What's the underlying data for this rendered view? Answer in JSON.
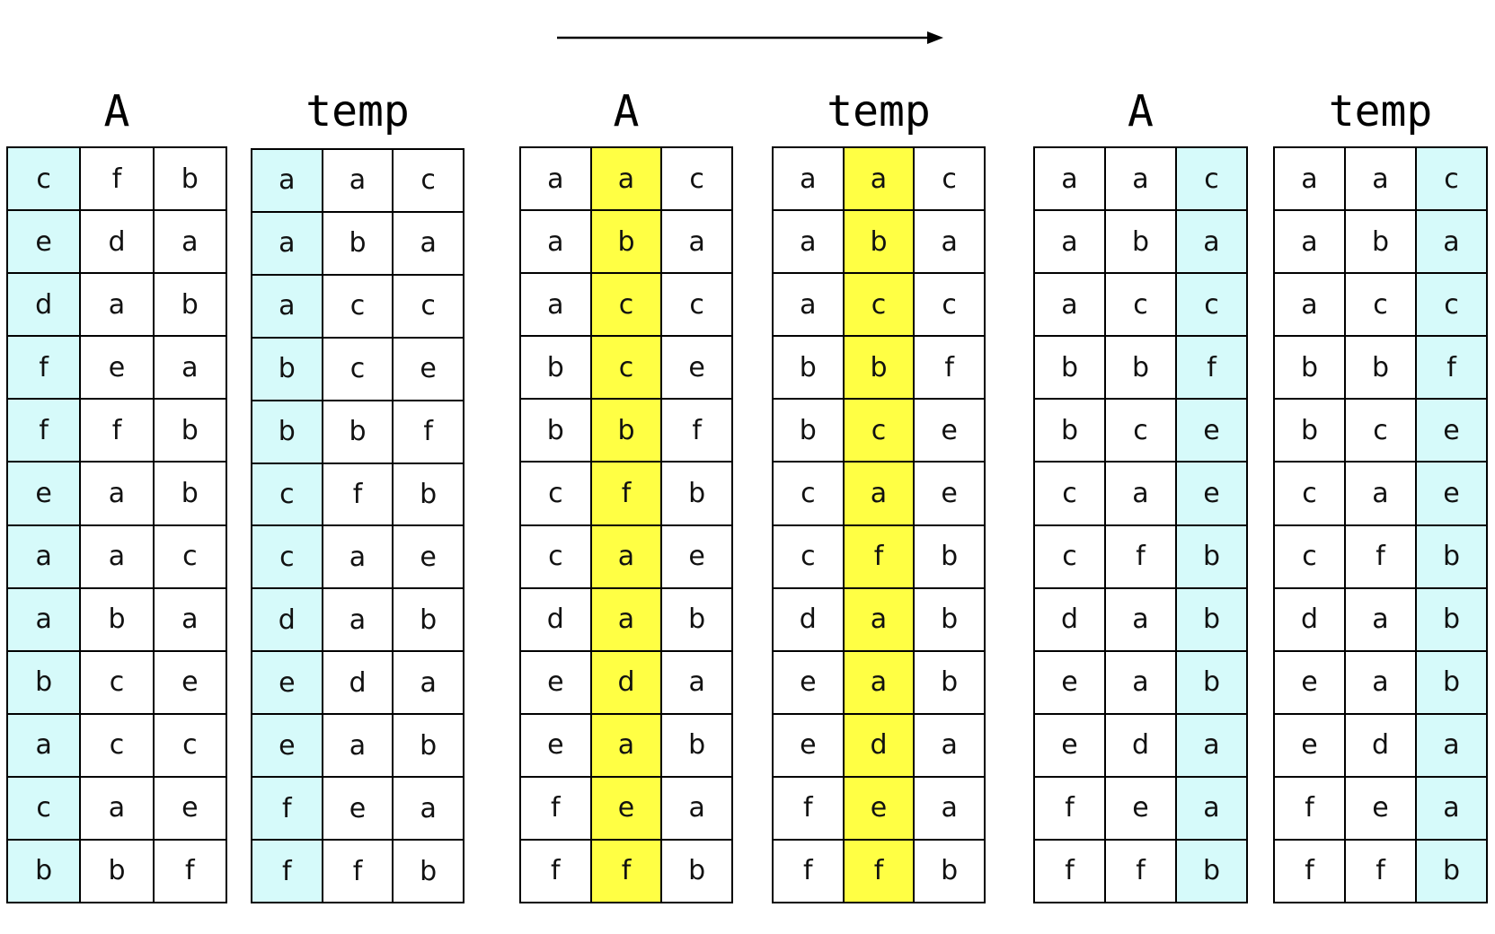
{
  "colors": {
    "cyan": "#d6fafa",
    "yellow": "#ffff44"
  },
  "panels": [
    {
      "title": "A",
      "highlight_col": 0,
      "highlight": "cyan",
      "rows": [
        [
          "c",
          "f",
          "b"
        ],
        [
          "e",
          "d",
          "a"
        ],
        [
          "d",
          "a",
          "b"
        ],
        [
          "f",
          "e",
          "a"
        ],
        [
          "f",
          "f",
          "b"
        ],
        [
          "e",
          "a",
          "b"
        ],
        [
          "a",
          "a",
          "c"
        ],
        [
          "a",
          "b",
          "a"
        ],
        [
          "b",
          "c",
          "e"
        ],
        [
          "a",
          "c",
          "c"
        ],
        [
          "c",
          "a",
          "e"
        ],
        [
          "b",
          "b",
          "f"
        ]
      ]
    },
    {
      "title": "temp",
      "highlight_col": 0,
      "highlight": "cyan",
      "rows": [
        [
          "a",
          "a",
          "c"
        ],
        [
          "a",
          "b",
          "a"
        ],
        [
          "a",
          "c",
          "c"
        ],
        [
          "b",
          "c",
          "e"
        ],
        [
          "b",
          "b",
          "f"
        ],
        [
          "c",
          "f",
          "b"
        ],
        [
          "c",
          "a",
          "e"
        ],
        [
          "d",
          "a",
          "b"
        ],
        [
          "e",
          "d",
          "a"
        ],
        [
          "e",
          "a",
          "b"
        ],
        [
          "f",
          "e",
          "a"
        ],
        [
          "f",
          "f",
          "b"
        ]
      ]
    },
    {
      "title": "A",
      "highlight_col": 1,
      "highlight": "yellow",
      "rows": [
        [
          "a",
          "a",
          "c"
        ],
        [
          "a",
          "b",
          "a"
        ],
        [
          "a",
          "c",
          "c"
        ],
        [
          "b",
          "c",
          "e"
        ],
        [
          "b",
          "b",
          "f"
        ],
        [
          "c",
          "f",
          "b"
        ],
        [
          "c",
          "a",
          "e"
        ],
        [
          "d",
          "a",
          "b"
        ],
        [
          "e",
          "d",
          "a"
        ],
        [
          "e",
          "a",
          "b"
        ],
        [
          "f",
          "e",
          "a"
        ],
        [
          "f",
          "f",
          "b"
        ]
      ]
    },
    {
      "title": "temp",
      "highlight_col": 1,
      "highlight": "yellow",
      "rows": [
        [
          "a",
          "a",
          "c"
        ],
        [
          "a",
          "b",
          "a"
        ],
        [
          "a",
          "c",
          "c"
        ],
        [
          "b",
          "b",
          "f"
        ],
        [
          "b",
          "c",
          "e"
        ],
        [
          "c",
          "a",
          "e"
        ],
        [
          "c",
          "f",
          "b"
        ],
        [
          "d",
          "a",
          "b"
        ],
        [
          "e",
          "a",
          "b"
        ],
        [
          "e",
          "d",
          "a"
        ],
        [
          "f",
          "e",
          "a"
        ],
        [
          "f",
          "f",
          "b"
        ]
      ]
    },
    {
      "title": "A",
      "highlight_col": 2,
      "highlight": "cyan",
      "rows": [
        [
          "a",
          "a",
          "c"
        ],
        [
          "a",
          "b",
          "a"
        ],
        [
          "a",
          "c",
          "c"
        ],
        [
          "b",
          "b",
          "f"
        ],
        [
          "b",
          "c",
          "e"
        ],
        [
          "c",
          "a",
          "e"
        ],
        [
          "c",
          "f",
          "b"
        ],
        [
          "d",
          "a",
          "b"
        ],
        [
          "e",
          "a",
          "b"
        ],
        [
          "e",
          "d",
          "a"
        ],
        [
          "f",
          "e",
          "a"
        ],
        [
          "f",
          "f",
          "b"
        ]
      ]
    },
    {
      "title": "temp",
      "highlight_col": 2,
      "highlight": "cyan",
      "rows": [
        [
          "a",
          "a",
          "c"
        ],
        [
          "a",
          "b",
          "a"
        ],
        [
          "a",
          "c",
          "c"
        ],
        [
          "b",
          "b",
          "f"
        ],
        [
          "b",
          "c",
          "e"
        ],
        [
          "c",
          "a",
          "e"
        ],
        [
          "c",
          "f",
          "b"
        ],
        [
          "d",
          "a",
          "b"
        ],
        [
          "e",
          "a",
          "b"
        ],
        [
          "e",
          "d",
          "a"
        ],
        [
          "f",
          "e",
          "a"
        ],
        [
          "f",
          "f",
          "b"
        ]
      ]
    }
  ]
}
